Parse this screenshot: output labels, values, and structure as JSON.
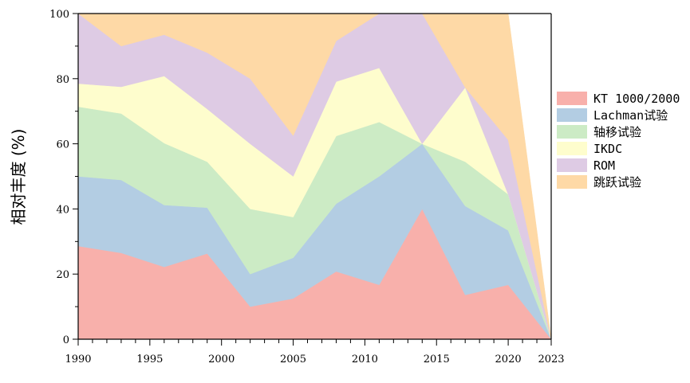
{
  "chart_data": {
    "type": "area",
    "stacked": true,
    "ylabel": "相对丰度 (%)",
    "xlim": [
      1990,
      2023
    ],
    "ylim": [
      0,
      100
    ],
    "x_ticks": [
      "1990",
      "1995",
      "2000",
      "2005",
      "2010",
      "2015",
      "2020",
      "2023"
    ],
    "y_ticks": [
      "0",
      "20",
      "40",
      "60",
      "80",
      "100"
    ],
    "grid": false,
    "legend_position": "right",
    "x": [
      1990,
      1993,
      1996,
      1999,
      2002,
      2005,
      2008,
      2011,
      2014,
      2017,
      2020,
      2023
    ],
    "series": [
      {
        "name": "KT 1000/2000",
        "color": "#f8b0ab",
        "values": [
          28.6,
          26.5,
          22.2,
          26.3,
          10.0,
          12.5,
          20.8,
          16.7,
          40.0,
          13.6,
          16.7,
          0
        ]
      },
      {
        "name": "Lachman试验",
        "color": "#b3cde3",
        "values": [
          21.4,
          22.4,
          19.0,
          14.1,
          10.0,
          12.5,
          20.8,
          33.3,
          20.0,
          27.3,
          16.7,
          0
        ]
      },
      {
        "name": "轴移试验",
        "color": "#ccebc5",
        "values": [
          21.4,
          20.4,
          19.0,
          14.1,
          20.0,
          12.5,
          20.8,
          16.7,
          0.0,
          13.6,
          11.1,
          0
        ]
      },
      {
        "name": "IKDC",
        "color": "#fefdcd",
        "values": [
          7.1,
          8.2,
          20.6,
          16.2,
          20.0,
          12.5,
          16.7,
          16.6,
          0.0,
          22.8,
          0.0,
          0
        ]
      },
      {
        "name": "ROM",
        "color": "#decbe4",
        "values": [
          21.5,
          12.5,
          12.7,
          17.3,
          20.0,
          12.5,
          12.5,
          16.7,
          40.0,
          0.0,
          16.7,
          0
        ]
      },
      {
        "name": "跳跃试验",
        "color": "#fed9a6",
        "values": [
          0.0,
          10.0,
          6.5,
          12.0,
          20.0,
          37.5,
          8.4,
          0.0,
          0.0,
          22.7,
          38.8,
          0
        ]
      }
    ]
  }
}
